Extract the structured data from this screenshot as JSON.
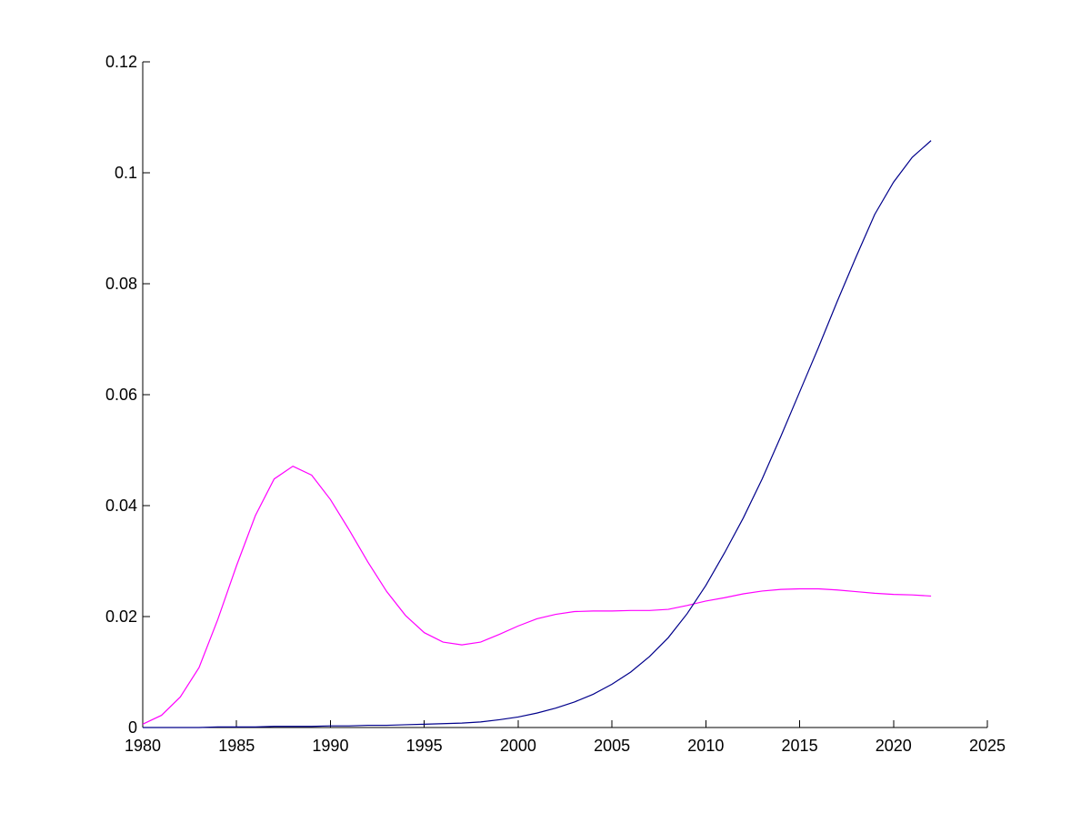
{
  "chart_data": {
    "type": "line",
    "title": "",
    "xlabel": "",
    "ylabel": "",
    "xlim": [
      1980,
      2025
    ],
    "ylim": [
      0,
      0.12
    ],
    "xticks": [
      1980,
      1985,
      1990,
      1995,
      2000,
      2005,
      2010,
      2015,
      2020,
      2025
    ],
    "xtick_labels": [
      "1980",
      "1985",
      "1990",
      "1995",
      "2000",
      "2005",
      "2010",
      "2015",
      "2020",
      "2025"
    ],
    "yticks": [
      0,
      0.02,
      0.04,
      0.06,
      0.08,
      0.1,
      0.12
    ],
    "ytick_labels": [
      "0",
      "0.02",
      "0.04",
      "0.06",
      "0.08",
      "0.1",
      "0.12"
    ],
    "grid": false,
    "legend": "none",
    "series": [
      {
        "color": "#ff00ff",
        "x": [
          1980,
          1981,
          1982,
          1983,
          1984,
          1985,
          1986,
          1987,
          1988,
          1989,
          1990,
          1991,
          1992,
          1993,
          1994,
          1995,
          1996,
          1997,
          1998,
          1999,
          2000,
          2001,
          2002,
          2003,
          2004,
          2005,
          2006,
          2007,
          2008,
          2009,
          2010,
          2011,
          2012,
          2013,
          2014,
          2015,
          2016,
          2017,
          2018,
          2019,
          2020,
          2021,
          2022
        ],
        "y": [
          0.0006,
          0.0022,
          0.0055,
          0.0108,
          0.0195,
          0.0292,
          0.0382,
          0.0448,
          0.0471,
          0.0455,
          0.0411,
          0.0356,
          0.0298,
          0.0245,
          0.0202,
          0.0171,
          0.0154,
          0.0149,
          0.0154,
          0.0168,
          0.0183,
          0.0196,
          0.0204,
          0.0209,
          0.021,
          0.021,
          0.0211,
          0.0211,
          0.0213,
          0.022,
          0.0228,
          0.0234,
          0.0241,
          0.0246,
          0.0249,
          0.025,
          0.025,
          0.0248,
          0.0245,
          0.0242,
          0.024,
          0.0239,
          0.0237
        ]
      },
      {
        "color": "#00008b",
        "x": [
          1980,
          1981,
          1982,
          1983,
          1984,
          1985,
          1986,
          1987,
          1988,
          1989,
          1990,
          1991,
          1992,
          1993,
          1994,
          1995,
          1996,
          1997,
          1998,
          1999,
          2000,
          2001,
          2002,
          2003,
          2004,
          2005,
          2006,
          2007,
          2008,
          2009,
          2010,
          2011,
          2012,
          2013,
          2014,
          2015,
          2016,
          2017,
          2018,
          2019,
          2020,
          2021,
          2022
        ],
        "y": [
          0.0,
          0.0,
          0.0,
          0.0,
          0.0001,
          0.0001,
          0.0001,
          0.0002,
          0.0002,
          0.0002,
          0.0003,
          0.0003,
          0.0004,
          0.0004,
          0.0005,
          0.0006,
          0.0007,
          0.0008,
          0.001,
          0.0014,
          0.0019,
          0.0026,
          0.0035,
          0.0046,
          0.006,
          0.0078,
          0.01,
          0.0128,
          0.0162,
          0.0205,
          0.0256,
          0.0315,
          0.0378,
          0.0448,
          0.0525,
          0.0605,
          0.0685,
          0.0768,
          0.0848,
          0.0925,
          0.0983,
          0.1028,
          0.1058
        ]
      }
    ]
  }
}
